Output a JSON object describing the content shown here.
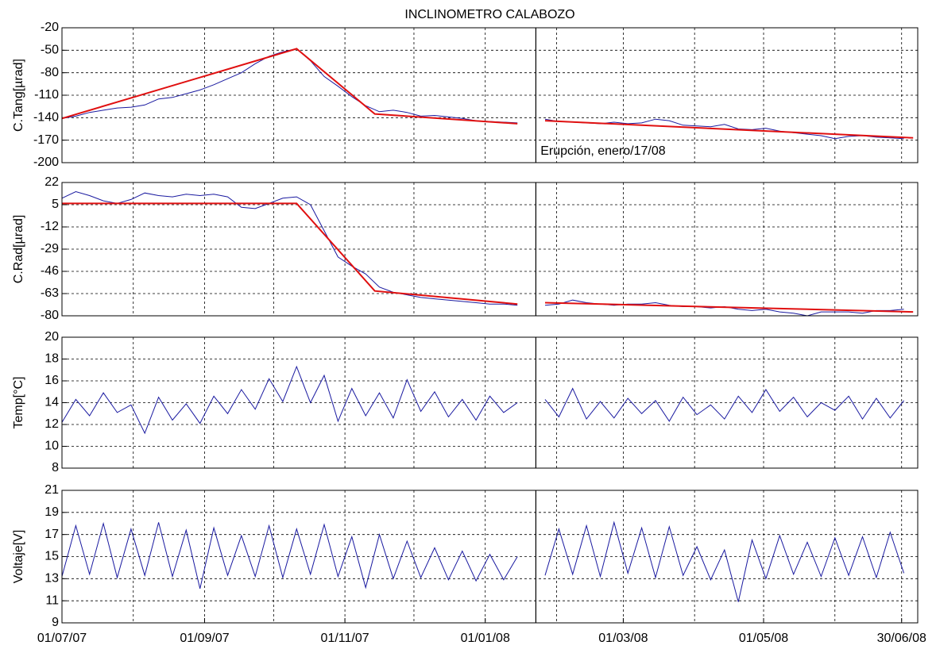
{
  "chart_data": [
    {
      "type": "line",
      "title": "INCLINOMETRO  CALABOZO",
      "ylabel": "C.Tang[µrad]",
      "annotation": "Erupción, enero/17/08",
      "xlim": [
        0,
        372
      ],
      "ylim": [
        -200,
        -20
      ],
      "yticks": [
        -200,
        -170,
        -140,
        -110,
        -80,
        -50,
        -20
      ],
      "xgrid": [
        31,
        62,
        92,
        123,
        153,
        184,
        215,
        244,
        275,
        305,
        336,
        365
      ],
      "grid": true,
      "vline": 206,
      "annotation_at": [
        208,
        -185
      ],
      "x": [
        0,
        6,
        12,
        18,
        24,
        30,
        36,
        42,
        48,
        54,
        60,
        66,
        72,
        78,
        84,
        90,
        96,
        102,
        108,
        114,
        120,
        126,
        132,
        138,
        144,
        150,
        156,
        162,
        168,
        174,
        180,
        186,
        192,
        198,
        204,
        210,
        216,
        222,
        228,
        234,
        240,
        246,
        252,
        258,
        264,
        270,
        276,
        282,
        288,
        294,
        300,
        306,
        312,
        318,
        324,
        330,
        336,
        342,
        348,
        354,
        360,
        366
      ],
      "series": [
        {
          "color": "#1a1aa0",
          "values": [
            -141,
            -138,
            -133,
            -130,
            -127,
            -126,
            -123,
            -115,
            -113,
            -108,
            -103,
            -96,
            -88,
            -80,
            -68,
            -58,
            -52,
            -48,
            -64,
            -85,
            -98,
            -112,
            -124,
            -132,
            -130,
            -133,
            -138,
            -137,
            -139,
            -141,
            -144,
            -145,
            -146,
            -147,
            null,
            -142,
            -145,
            -146,
            -147,
            -148,
            -146,
            -148,
            -147,
            -142,
            -144,
            -150,
            -151,
            -152,
            -149,
            -155,
            -156,
            -154,
            -158,
            -160,
            -162,
            -164,
            -168,
            -165,
            -164,
            -166,
            -167,
            -168
          ]
        },
        {
          "color": "#e01010",
          "x": [
            0,
            102,
            136,
            198,
            null,
            210,
            370
          ],
          "values": [
            -141,
            -48,
            -135,
            -148,
            null,
            -144,
            -167
          ]
        }
      ]
    },
    {
      "type": "line",
      "ylabel": "C.Rad[µrad]",
      "xlim": [
        0,
        372
      ],
      "ylim": [
        -80,
        22
      ],
      "yticks": [
        -80,
        -63,
        -46,
        -29,
        -12,
        5,
        22
      ],
      "xgrid": [
        31,
        62,
        92,
        123,
        153,
        184,
        215,
        244,
        275,
        305,
        336,
        365
      ],
      "grid": true,
      "vline": 206,
      "x": [
        0,
        6,
        12,
        18,
        24,
        30,
        36,
        42,
        48,
        54,
        60,
        66,
        72,
        78,
        84,
        90,
        96,
        102,
        108,
        114,
        120,
        126,
        132,
        138,
        144,
        150,
        156,
        162,
        168,
        174,
        180,
        186,
        192,
        198,
        204,
        210,
        216,
        222,
        228,
        234,
        240,
        246,
        252,
        258,
        264,
        270,
        276,
        282,
        288,
        294,
        300,
        306,
        312,
        318,
        324,
        330,
        336,
        342,
        348,
        354,
        360,
        366
      ],
      "series": [
        {
          "color": "#1a1aa0",
          "values": [
            10,
            15,
            12,
            8,
            6,
            9,
            14,
            12,
            11,
            13,
            12,
            13,
            11,
            3,
            2,
            6,
            10,
            11,
            5,
            -15,
            -35,
            -42,
            -48,
            -58,
            -62,
            -64,
            -66,
            -67,
            -68,
            -69,
            -70,
            -71,
            -71,
            -72,
            null,
            -72,
            -71,
            -68,
            -70,
            -71,
            -72,
            -71,
            -71,
            -70,
            -72,
            -73,
            -73,
            -74,
            -73,
            -75,
            -76,
            -75,
            -77,
            -78,
            -80,
            -77,
            -77,
            -77,
            -78,
            -76,
            -76,
            -75
          ]
        },
        {
          "color": "#e01010",
          "x": [
            0,
            102,
            136,
            198,
            null,
            210,
            370
          ],
          "values": [
            6,
            6,
            -61,
            -71,
            null,
            -70,
            -77
          ]
        }
      ]
    },
    {
      "type": "line",
      "ylabel": "Temp[°C]",
      "xlim": [
        0,
        372
      ],
      "ylim": [
        8,
        20
      ],
      "yticks": [
        8,
        10,
        12,
        14,
        16,
        18,
        20
      ],
      "xgrid": [
        31,
        62,
        92,
        123,
        153,
        184,
        215,
        244,
        275,
        305,
        336,
        365
      ],
      "grid": true,
      "vline": 206,
      "x": [
        0,
        6,
        12,
        18,
        24,
        30,
        36,
        42,
        48,
        54,
        60,
        66,
        72,
        78,
        84,
        90,
        96,
        102,
        108,
        114,
        120,
        126,
        132,
        138,
        144,
        150,
        156,
        162,
        168,
        174,
        180,
        186,
        192,
        198,
        204,
        210,
        216,
        222,
        228,
        234,
        240,
        246,
        252,
        258,
        264,
        270,
        276,
        282,
        288,
        294,
        300,
        306,
        312,
        318,
        324,
        330,
        336,
        342,
        348,
        354,
        360,
        366
      ],
      "series": [
        {
          "color": "#1a1aa0",
          "values": [
            12.2,
            14.3,
            12.8,
            14.9,
            13.1,
            13.8,
            11.2,
            14.5,
            12.4,
            13.9,
            12.1,
            14.6,
            13.0,
            15.2,
            13.4,
            16.2,
            14.1,
            17.3,
            14.0,
            16.5,
            12.3,
            15.3,
            12.8,
            14.9,
            12.6,
            16.1,
            13.2,
            15.0,
            12.7,
            14.3,
            12.4,
            14.6,
            13.1,
            14.0,
            null,
            14.3,
            12.7,
            15.3,
            12.5,
            14.1,
            12.6,
            14.4,
            13.0,
            14.2,
            12.3,
            14.5,
            12.9,
            13.8,
            12.5,
            14.6,
            13.1,
            15.2,
            13.2,
            14.5,
            12.7,
            14.0,
            13.3,
            14.6,
            12.5,
            14.4,
            12.6,
            14.2
          ]
        }
      ]
    },
    {
      "type": "line",
      "ylabel": "Voltaje[V]",
      "xlim": [
        0,
        372
      ],
      "ylim": [
        9,
        21
      ],
      "yticks": [
        9,
        11,
        13,
        15,
        17,
        19,
        21
      ],
      "xgrid": [
        31,
        62,
        92,
        123,
        153,
        184,
        215,
        244,
        275,
        305,
        336,
        365
      ],
      "grid": true,
      "vline": 206,
      "xticks": [
        {
          "value": 0,
          "label": "01/07/07"
        },
        {
          "value": 62,
          "label": "01/09/07"
        },
        {
          "value": 123,
          "label": "01/11/07"
        },
        {
          "value": 184,
          "label": "01/01/08"
        },
        {
          "value": 244,
          "label": "01/03/08"
        },
        {
          "value": 305,
          "label": "01/05/08"
        },
        {
          "value": 365,
          "label": "30/06/08"
        }
      ],
      "x": [
        0,
        6,
        12,
        18,
        24,
        30,
        36,
        42,
        48,
        54,
        60,
        66,
        72,
        78,
        84,
        90,
        96,
        102,
        108,
        114,
        120,
        126,
        132,
        138,
        144,
        150,
        156,
        162,
        168,
        174,
        180,
        186,
        192,
        198,
        204,
        210,
        216,
        222,
        228,
        234,
        240,
        246,
        252,
        258,
        264,
        270,
        276,
        282,
        288,
        294,
        300,
        306,
        312,
        318,
        324,
        330,
        336,
        342,
        348,
        354,
        360,
        366
      ],
      "series": [
        {
          "color": "#1a1aa0",
          "values": [
            13.2,
            17.8,
            13.4,
            18.0,
            13.1,
            17.5,
            13.3,
            18.1,
            13.2,
            17.4,
            12.1,
            17.6,
            13.3,
            16.9,
            13.2,
            17.8,
            13.1,
            17.5,
            13.4,
            17.9,
            13.2,
            16.8,
            12.2,
            17.0,
            13.0,
            16.4,
            13.1,
            15.8,
            12.9,
            15.5,
            12.8,
            15.2,
            12.9,
            15.0,
            null,
            13.3,
            17.5,
            13.4,
            17.8,
            13.2,
            18.1,
            13.5,
            17.6,
            13.1,
            17.7,
            13.3,
            15.9,
            12.9,
            15.6,
            10.9,
            16.5,
            13.0,
            16.9,
            13.4,
            16.3,
            13.2,
            16.7,
            13.3,
            16.8,
            13.1,
            17.2,
            13.5
          ]
        }
      ]
    }
  ]
}
